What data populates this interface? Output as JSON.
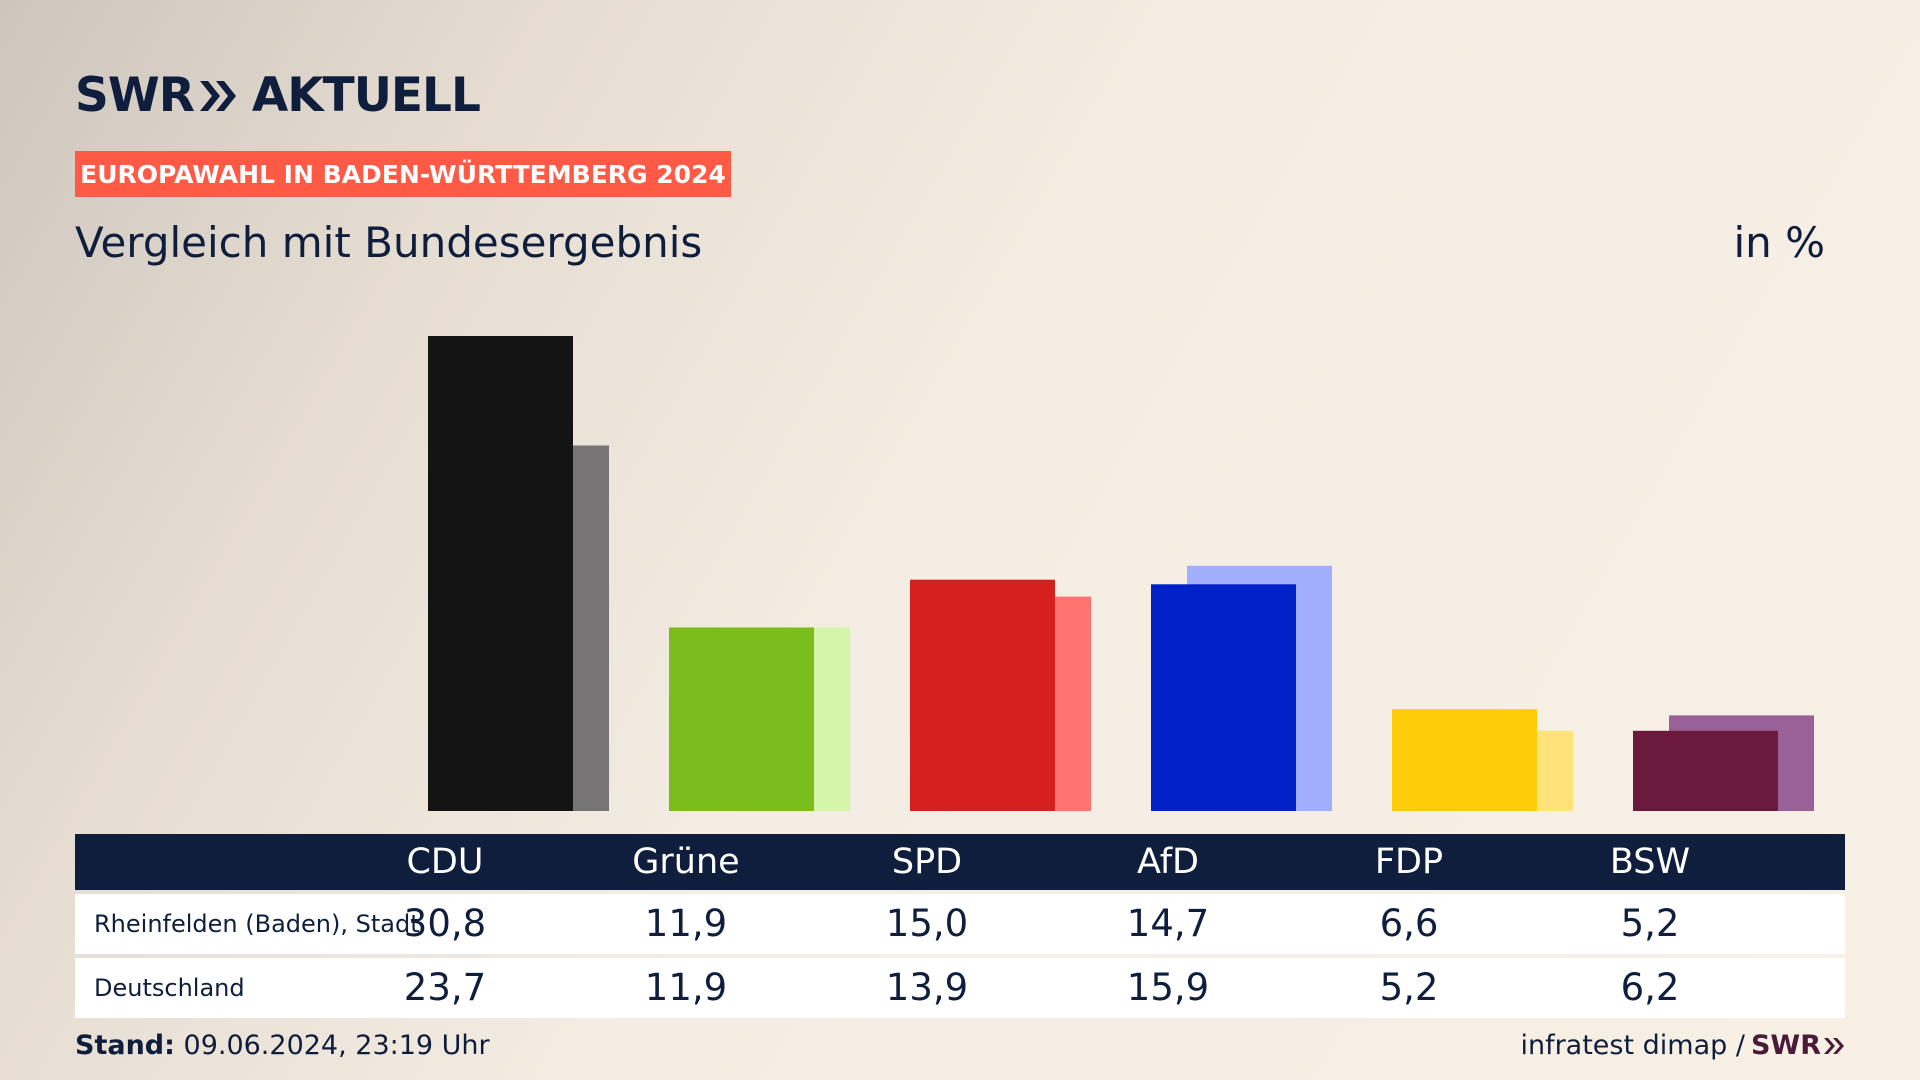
{
  "brand": {
    "swr": "SWR",
    "aktuell": "AKTUELL"
  },
  "event_tag": "EUROPAWAHL IN BADEN-WÜRTTEMBERG 2024",
  "colors": {
    "navy": "#0f1e3c",
    "tag": "#ff5a45",
    "local": [
      "#141414",
      "#7cbd1e",
      "#d61f1f",
      "#0021c7",
      "#ffcc0a",
      "#6b1a3e"
    ],
    "national": [
      "#767474",
      "#d5f6a8",
      "#ff7471",
      "#a0aefe",
      "#ffe37a",
      "#9a6198"
    ]
  },
  "chart_data": {
    "type": "bar",
    "title": "Vergleich mit Bundesergebnis",
    "unit": "in %",
    "categories": [
      "CDU",
      "Grüne",
      "SPD",
      "AfD",
      "FDP",
      "BSW"
    ],
    "series": [
      {
        "name": "Rheinfelden (Baden), Stadt",
        "values": [
          30.8,
          11.9,
          15.0,
          14.7,
          6.6,
          5.2
        ]
      },
      {
        "name": "Deutschland",
        "values": [
          23.7,
          11.9,
          13.9,
          15.9,
          5.2,
          6.2
        ]
      }
    ],
    "value_labels": [
      [
        "30,8",
        "11,9",
        "15,0",
        "14,7",
        "6,6",
        "5,2"
      ],
      [
        "23,7",
        "11,9",
        "13,9",
        "15,9",
        "5,2",
        "6,2"
      ]
    ],
    "ylim": [
      0,
      30.8
    ]
  },
  "footer": {
    "stand_label": "Stand:",
    "stand_value": "09.06.2024, 23:19 Uhr",
    "source": "infratest dimap /",
    "source_brand": "SWR"
  }
}
